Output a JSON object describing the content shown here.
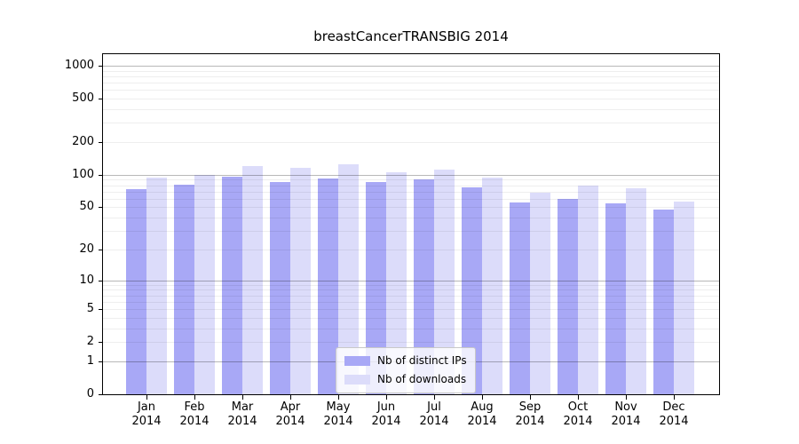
{
  "figure": {
    "background": "#ffffff",
    "axis_color": "#000000",
    "major_grid_color": "#b3b3b3",
    "minor_grid_color": "#ededed"
  },
  "chart_data": {
    "type": "bar",
    "title": "breastCancerTRANSBIG 2014",
    "year": "2014",
    "categories": [
      "Jan",
      "Feb",
      "Mar",
      "Apr",
      "May",
      "Jun",
      "Jul",
      "Aug",
      "Sep",
      "Oct",
      "Nov",
      "Dec"
    ],
    "series": [
      {
        "name": "Nb of distinct IPs",
        "color": "#a8a8f6",
        "values": [
          74,
          81,
          96,
          86,
          93,
          86,
          91,
          76,
          55,
          60,
          54,
          48
        ]
      },
      {
        "name": "Nb of downloads",
        "color": "#dcdcfa",
        "values": [
          95,
          100,
          120,
          117,
          125,
          105,
          111,
          95,
          68,
          80,
          75,
          57
        ]
      }
    ],
    "xlabel": "",
    "ylabel": "",
    "yscale": "log1p",
    "yticks": [
      0,
      1,
      2,
      5,
      10,
      20,
      50,
      100,
      200,
      500,
      1000
    ],
    "ylim": [
      0,
      1275
    ],
    "grid": "horizontal",
    "legend_position": "lower center"
  }
}
